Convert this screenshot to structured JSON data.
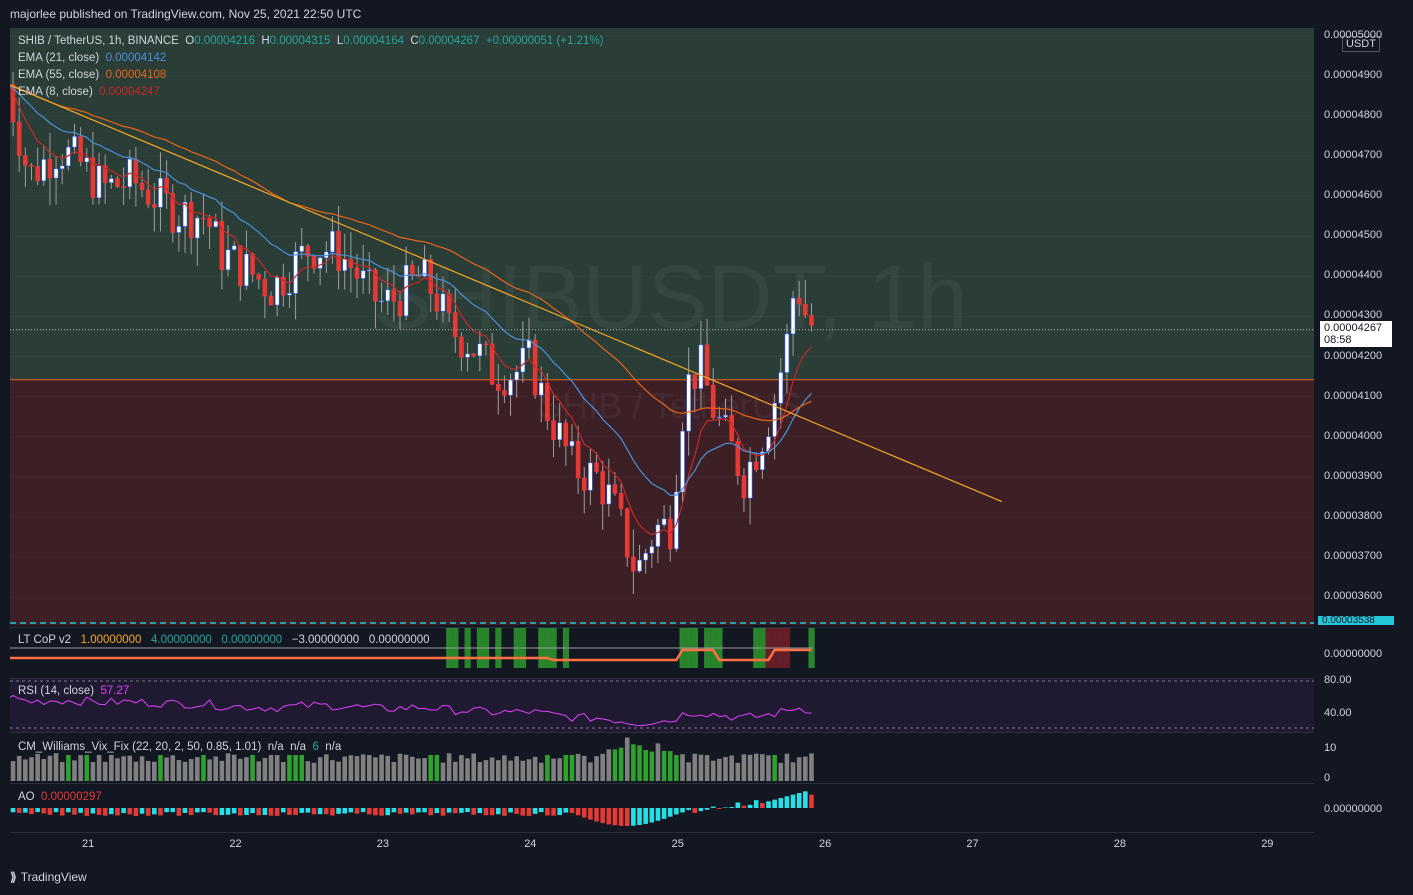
{
  "header": {
    "publisher": "majorlee published on TradingView.com, Nov 25, 2021 22:50 UTC"
  },
  "symbol_line": {
    "symbol": "SHIB / TetherUS, 1h, BINANCE",
    "o_label": "O",
    "o": "0.00004216",
    "h_label": "H",
    "h": "0.00004315",
    "l_label": "L",
    "l": "0.00004164",
    "c_label": "C",
    "c": "0.00004267",
    "chg": "+0.00000051 (+1.21%)"
  },
  "ema": [
    {
      "label": "EMA (21, close)",
      "value": "0.00004142",
      "color": "#4a90d9"
    },
    {
      "label": "EMA (55, close)",
      "value": "0.00004108",
      "color": "#e8651a"
    },
    {
      "label": "EMA (8, close)",
      "value": "0.00004247",
      "color": "#c62828"
    }
  ],
  "watermark": {
    "big": "SHIBUSDT, 1h",
    "small": "SHIB / TetherUS"
  },
  "price_axis": {
    "currency": "USDT",
    "labels": [
      "0.00005000",
      "0.00004900",
      "0.00004800",
      "0.00004700",
      "0.00004600",
      "0.00004500",
      "0.00004400",
      "0.00004300",
      "0.00004200",
      "0.00004100",
      "0.00004000",
      "0.00003900",
      "0.00003800",
      "0.00003700",
      "0.00003600"
    ],
    "bottom_label": "0.00003538",
    "last_price": "0.00004267",
    "countdown": "08:58"
  },
  "x_axis": {
    "labels": [
      "21",
      "22",
      "23",
      "24",
      "25",
      "26",
      "27",
      "28",
      "29"
    ]
  },
  "indicators": {
    "ltcop": {
      "name": "LT CoP v2",
      "values": [
        "1.00000000",
        "4.00000000",
        "0.00000000",
        "−3.00000000",
        "0.00000000"
      ],
      "axis": "0.00000000"
    },
    "rsi": {
      "name": "RSI (14, close)",
      "value": "57.27",
      "axis": [
        "80.00",
        "40.00"
      ]
    },
    "vix": {
      "name": "CM_Williams_Vix_Fix (22, 20, 2, 50, 0.85, 1.01)",
      "values": [
        "n/a",
        "n/a",
        "6",
        "n/a"
      ],
      "axis": [
        "10",
        "0"
      ]
    },
    "ao": {
      "name": "AO",
      "value": "0.00000297",
      "axis": "0.00000000"
    }
  },
  "footer": {
    "brand": "TradingView"
  },
  "colors": {
    "up": "#ffffff",
    "down": "#e53935",
    "trendline": "#f5a623",
    "zone_green": "#2a3d36",
    "zone_red": "#3c2026",
    "rsi": "#e040fb",
    "ao_up": "#26e0e8",
    "ao_down": "#e53935",
    "vix_green": "#2ea12e",
    "vix_grey": "#808080"
  },
  "chart_data": {
    "type": "candlestick",
    "title": "SHIB / TetherUS, 1h, BINANCE",
    "x_dates": [
      "21",
      "22",
      "23",
      "24",
      "25",
      "26",
      "27",
      "28",
      "29"
    ],
    "y_range": [
      3.53e-05,
      5.02e-05
    ],
    "last_close": 4.267e-05,
    "zone_boundary": 4.142e-05,
    "trendline": {
      "start": {
        "x": 20.0,
        "y": 4.95e-05
      },
      "end": {
        "x": 27.2,
        "y": 3.838e-05
      }
    },
    "path_points": [
      {
        "x": 20.45,
        "y": 4.88e-05
      },
      {
        "x": 20.6,
        "y": 4.65e-05
      },
      {
        "x": 20.8,
        "y": 4.72e-05
      },
      {
        "x": 20.95,
        "y": 4.68e-05
      },
      {
        "x": 21.1,
        "y": 4.62e-05
      },
      {
        "x": 21.3,
        "y": 4.64e-05
      },
      {
        "x": 21.6,
        "y": 4.56e-05
      },
      {
        "x": 21.8,
        "y": 4.55e-05
      },
      {
        "x": 21.9,
        "y": 4.46e-05
      },
      {
        "x": 22.1,
        "y": 4.41e-05
      },
      {
        "x": 22.25,
        "y": 4.37e-05
      },
      {
        "x": 22.4,
        "y": 4.43e-05
      },
      {
        "x": 22.5,
        "y": 4.47e-05
      },
      {
        "x": 22.6,
        "y": 4.47e-05
      },
      {
        "x": 22.7,
        "y": 4.46e-05
      },
      {
        "x": 22.8,
        "y": 4.42e-05
      },
      {
        "x": 22.9,
        "y": 4.36e-05
      },
      {
        "x": 23.0,
        "y": 4.33e-05
      },
      {
        "x": 23.1,
        "y": 4.35e-05
      },
      {
        "x": 23.25,
        "y": 4.4e-05
      },
      {
        "x": 23.35,
        "y": 4.36e-05
      },
      {
        "x": 23.45,
        "y": 4.27e-05
      },
      {
        "x": 23.6,
        "y": 4.23e-05
      },
      {
        "x": 23.75,
        "y": 4.16e-05
      },
      {
        "x": 23.9,
        "y": 4.16e-05
      },
      {
        "x": 24.0,
        "y": 4.19e-05
      },
      {
        "x": 24.1,
        "y": 4.08e-05
      },
      {
        "x": 24.3,
        "y": 3.92e-05
      },
      {
        "x": 24.45,
        "y": 3.9e-05
      },
      {
        "x": 24.55,
        "y": 3.84e-05
      },
      {
        "x": 24.65,
        "y": 3.74e-05
      },
      {
        "x": 24.72,
        "y": 3.66e-05
      },
      {
        "x": 24.85,
        "y": 3.77e-05
      },
      {
        "x": 24.95,
        "y": 3.78e-05
      },
      {
        "x": 25.05,
        "y": 4.12e-05
      },
      {
        "x": 25.15,
        "y": 4.18e-05
      },
      {
        "x": 25.25,
        "y": 4.06e-05
      },
      {
        "x": 25.35,
        "y": 3.98e-05
      },
      {
        "x": 25.45,
        "y": 3.9e-05
      },
      {
        "x": 25.55,
        "y": 3.98e-05
      },
      {
        "x": 25.65,
        "y": 4.08e-05
      },
      {
        "x": 25.75,
        "y": 4.25e-05
      },
      {
        "x": 25.8,
        "y": 4.4e-05
      },
      {
        "x": 25.85,
        "y": 4.32e-05
      },
      {
        "x": 25.92,
        "y": 4.27e-05
      }
    ]
  }
}
